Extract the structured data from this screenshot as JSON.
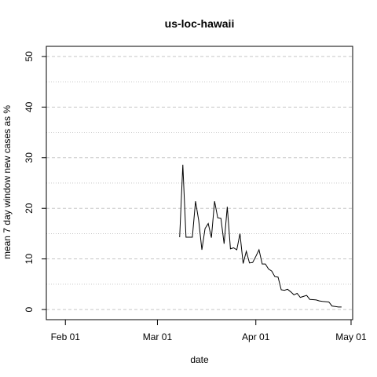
{
  "chart_data": {
    "type": "line",
    "title": "us-loc-hawaii",
    "xlabel": "date",
    "ylabel": "mean  7  day window new cases as %",
    "x_ticks": [
      {
        "day": 0,
        "label": "Feb 01"
      },
      {
        "day": 29,
        "label": "Mar 01"
      },
      {
        "day": 60,
        "label": "Apr 01"
      },
      {
        "day": 90,
        "label": "May 01"
      }
    ],
    "y_ticks": [
      0,
      10,
      20,
      30,
      40,
      50
    ],
    "xlim": [
      -6,
      90.5
    ],
    "ylim": [
      -2,
      52
    ],
    "grid": "horizontal dashed at major ticks, dotted at minor ticks",
    "series": [
      {
        "name": "us-loc-hawaii",
        "x_unit": "days since Feb 01",
        "x": [
          36,
          37,
          38,
          39,
          40,
          41,
          42,
          43,
          44,
          45,
          46,
          47,
          48,
          49,
          50,
          51,
          52,
          53,
          54,
          55,
          56,
          57,
          58,
          59,
          60,
          61,
          62,
          63,
          64,
          65,
          66,
          67,
          68,
          69,
          70,
          71,
          72,
          73,
          74,
          75,
          76,
          77,
          78,
          79,
          80,
          81,
          82,
          83,
          84,
          85,
          86,
          87
        ],
        "y": [
          14.3,
          28.6,
          14.3,
          14.3,
          14.3,
          21.4,
          17.6,
          11.8,
          16.0,
          17.0,
          14.2,
          21.4,
          18.1,
          18.0,
          13.0,
          20.3,
          12.0,
          12.2,
          11.8,
          15.0,
          9.1,
          11.5,
          9.2,
          9.3,
          10.5,
          11.8,
          9.0,
          9.0,
          8.0,
          7.6,
          6.5,
          6.4,
          3.9,
          3.8,
          4.0,
          3.5,
          2.9,
          3.2,
          2.4,
          2.6,
          2.8,
          2.0,
          1.95,
          1.9,
          1.7,
          1.6,
          1.55,
          1.5,
          0.7,
          0.6,
          0.5,
          0.5
        ]
      }
    ]
  }
}
